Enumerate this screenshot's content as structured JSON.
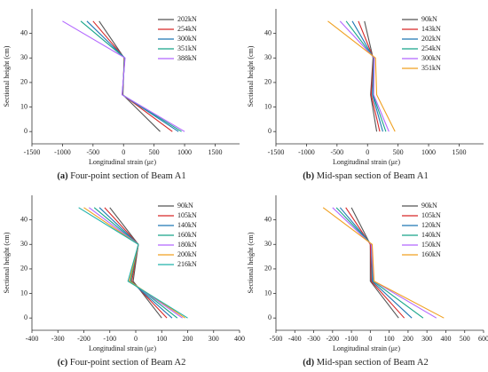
{
  "chart_data": [
    {
      "type": "line",
      "label": "(a)",
      "caption": "Four-point section of Beam A1",
      "xlabel": "Longitudinal strain (με)",
      "ylabel": "Sectional height (cm)",
      "y": [
        0,
        15,
        30,
        45
      ],
      "xlim": [
        -1500,
        1900
      ],
      "xticks": [
        -1500,
        -1000,
        -500,
        0,
        500,
        1000,
        1500
      ],
      "ylim": [
        -5,
        50
      ],
      "yticks": [
        0,
        10,
        20,
        30,
        40
      ],
      "series": [
        {
          "name": "202kN",
          "color": "#555555",
          "x": [
            600,
            -10,
            10,
            -400
          ]
        },
        {
          "name": "254kN",
          "color": "#d62728",
          "x": [
            800,
            -15,
            15,
            -500
          ]
        },
        {
          "name": "300kN",
          "color": "#1f77b4",
          "x": [
            900,
            -20,
            20,
            -600
          ]
        },
        {
          "name": "351kN",
          "color": "#17a589",
          "x": [
            950,
            -20,
            20,
            -700
          ]
        },
        {
          "name": "388kN",
          "color": "#b266ff",
          "x": [
            1000,
            -25,
            25,
            -1000
          ]
        }
      ]
    },
    {
      "type": "line",
      "label": "(b)",
      "caption": "Mid-span section of Beam A1",
      "xlabel": "Longitudinal strain (με)",
      "ylabel": "Sectional height (cm)",
      "y": [
        0,
        15,
        30,
        45
      ],
      "xlim": [
        -1500,
        1900
      ],
      "xticks": [
        -1500,
        -1000,
        -500,
        0,
        500,
        1000,
        1500
      ],
      "ylim": [
        -5,
        50
      ],
      "yticks": [
        0,
        10,
        20,
        30,
        40
      ],
      "series": [
        {
          "name": "90kN",
          "color": "#555555",
          "x": [
            150,
            50,
            90,
            -50
          ]
        },
        {
          "name": "143kN",
          "color": "#d62728",
          "x": [
            200,
            60,
            95,
            -150
          ]
        },
        {
          "name": "202kN",
          "color": "#1f77b4",
          "x": [
            250,
            80,
            100,
            -250
          ]
        },
        {
          "name": "254kN",
          "color": "#17a589",
          "x": [
            300,
            90,
            105,
            -350
          ]
        },
        {
          "name": "300kN",
          "color": "#b266ff",
          "x": [
            350,
            100,
            110,
            -450
          ]
        },
        {
          "name": "351kN",
          "color": "#f0a020",
          "x": [
            450,
            150,
            130,
            -650
          ]
        }
      ]
    },
    {
      "type": "line",
      "label": "(c)",
      "caption": "Four-point section of Beam A2",
      "xlabel": "Longitudinal strain (με)",
      "ylabel": "Sectional height (cm)",
      "y": [
        0,
        15,
        30,
        45
      ],
      "xlim": [
        -400,
        400
      ],
      "xticks": [
        -400,
        -300,
        -200,
        -100,
        0,
        100,
        200,
        300,
        400
      ],
      "ylim": [
        -5,
        50
      ],
      "yticks": [
        0,
        10,
        20,
        30,
        40
      ],
      "series": [
        {
          "name": "90kN",
          "color": "#555555",
          "x": [
            100,
            -10,
            10,
            -100
          ]
        },
        {
          "name": "105kN",
          "color": "#d62728",
          "x": [
            120,
            -15,
            10,
            -120
          ]
        },
        {
          "name": "140kN",
          "color": "#1f77b4",
          "x": [
            140,
            -20,
            10,
            -140
          ]
        },
        {
          "name": "160kN",
          "color": "#17a589",
          "x": [
            160,
            -20,
            10,
            -160
          ]
        },
        {
          "name": "180kN",
          "color": "#b266ff",
          "x": [
            180,
            -25,
            10,
            -180
          ]
        },
        {
          "name": "200kN",
          "color": "#f0a020",
          "x": [
            190,
            -25,
            10,
            -200
          ]
        },
        {
          "name": "216kN",
          "color": "#20b2aa",
          "x": [
            200,
            -30,
            10,
            -220
          ]
        }
      ]
    },
    {
      "type": "line",
      "label": "(d)",
      "caption": "Mid-span section of Beam A2",
      "xlabel": "Longitudinal strain (με)",
      "ylabel": "Sectional height (cm)",
      "y": [
        0,
        15,
        30,
        45
      ],
      "xlim": [
        -500,
        600
      ],
      "xticks": [
        -500,
        -400,
        -300,
        -200,
        -100,
        0,
        100,
        200,
        300,
        400,
        500,
        600
      ],
      "ylim": [
        -5,
        50
      ],
      "yticks": [
        0,
        10,
        20,
        30,
        40
      ],
      "series": [
        {
          "name": "90kN",
          "color": "#555555",
          "x": [
            150,
            0,
            0,
            -100
          ]
        },
        {
          "name": "105kN",
          "color": "#d62728",
          "x": [
            180,
            5,
            0,
            -130
          ]
        },
        {
          "name": "120kN",
          "color": "#1f77b4",
          "x": [
            220,
            10,
            5,
            -160
          ]
        },
        {
          "name": "140kN",
          "color": "#17a589",
          "x": [
            280,
            15,
            5,
            -180
          ]
        },
        {
          "name": "150kN",
          "color": "#b266ff",
          "x": [
            350,
            18,
            5,
            -200
          ]
        },
        {
          "name": "160kN",
          "color": "#f0a020",
          "x": [
            390,
            20,
            10,
            -250
          ]
        }
      ]
    }
  ]
}
